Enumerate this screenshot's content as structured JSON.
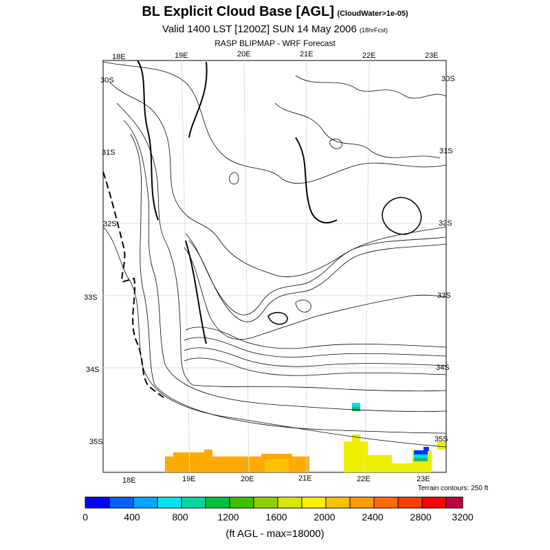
{
  "header": {
    "title": "BL Explicit Cloud Base [AGL]",
    "title_note": "(CloudWater>1e-05)",
    "valid": "Valid 1400 LST [1200Z] SUN 14 May 2006",
    "forecast": "(18hrFcst)",
    "product": "RASP BLIPMAP - WRF Forecast"
  },
  "axes": {
    "top_lon": [
      "18E",
      "19E",
      "20E",
      "21E",
      "22E",
      "23E"
    ],
    "bottom_lon": [
      "18E",
      "19E",
      "20E",
      "21E",
      "22E",
      "23E"
    ],
    "left_lat": [
      "30S",
      "31S",
      "32S",
      "33S",
      "34S",
      "35S"
    ],
    "right_lat": [
      "30S",
      "31S",
      "32S",
      "33S",
      "34S",
      "35S"
    ]
  },
  "terrain_note": "Terrain contours: 250 ft",
  "colorbar": {
    "colors": [
      "#0000ff",
      "#0060ff",
      "#00a8ff",
      "#00e6f0",
      "#00d8a0",
      "#00c040",
      "#40c000",
      "#90d000",
      "#d8e800",
      "#ffee00",
      "#ffc000",
      "#ff9c00",
      "#ff6a00",
      "#ff3c00",
      "#ff0000",
      "#c00040"
    ],
    "tick_labels": [
      "0",
      "400",
      "800",
      "1200",
      "1600",
      "2000",
      "2400",
      "2800",
      "3200"
    ]
  },
  "units_label": "(ft AGL - max=18000)",
  "cloud_base_colors": {
    "orange": "#ffaa00",
    "yellow": "#eeee00",
    "green": "#22bb66",
    "cyan": "#00ddee",
    "blue": "#0033ff"
  }
}
